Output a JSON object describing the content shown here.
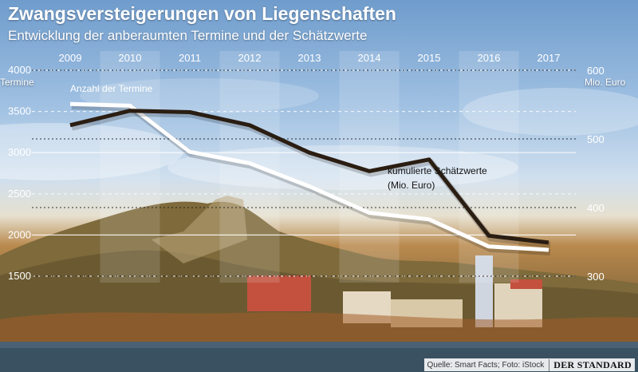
{
  "title": "Zwangsversteigerungen von Liegenschaften",
  "subtitle": "Entwicklung der anberaumten Termine und der Schätzwerte",
  "footer": {
    "source": "Quelle: Smart Facts; Foto: iStock",
    "brand": "DER STANDARD"
  },
  "colors": {
    "termine": "#ffffff",
    "schaetzwerte": "#2a1d12",
    "grid": "#ffffff"
  },
  "chart_data": {
    "type": "line",
    "x": [
      "2009",
      "2010",
      "2011",
      "2012",
      "2013",
      "2014",
      "2015",
      "2016",
      "2017"
    ],
    "grid": true,
    "y_left": {
      "label": "Termine",
      "ticks": [
        1500,
        2000,
        2500,
        3000,
        3500,
        4000
      ],
      "ylim": [
        1500,
        4000
      ]
    },
    "y_right": {
      "label": "Mio. Euro",
      "ticks": [
        300,
        400,
        500,
        600
      ],
      "ylim": [
        300,
        600
      ]
    },
    "series": [
      {
        "name": "Anzahl der Termine",
        "axis": "left",
        "color": "#ffffff",
        "values": [
          3590,
          3570,
          3010,
          2870,
          2590,
          2270,
          2190,
          1860,
          1820
        ]
      },
      {
        "name": "kumulierte Schätzwerte",
        "name_line2": "(Mio. Euro)",
        "axis": "right",
        "color": "#2a1d12",
        "values": [
          520,
          541,
          539,
          520,
          480,
          453,
          470,
          359,
          349
        ]
      }
    ]
  }
}
